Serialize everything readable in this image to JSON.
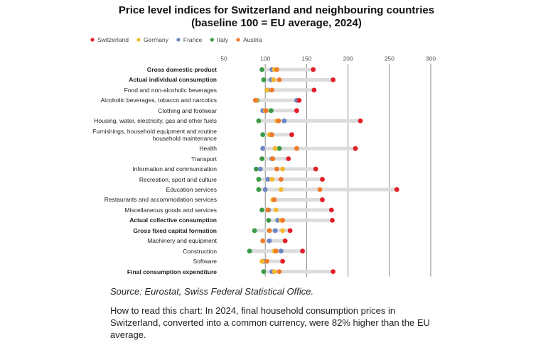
{
  "chart_data": {
    "type": "dot",
    "title": "Price level indices for Switzerland and neighbouring countries",
    "subtitle": "(baseline 100 = EU average, 2024)",
    "categories": [
      "Gross domestic product",
      "Actual individual consumption",
      "Food and non-alcoholic beverages",
      "Alcoholic beverages, tobacco and narcotics",
      "Clothing and footwear",
      "Housing, water, electricity, gas and other fuels",
      "Furnishings, household equipment and routine household maintenance",
      "Health",
      "Transport",
      "Information and communication",
      "Recreation, sport and culture",
      "Education services",
      "Restaurants and accommodation services",
      "Miscellaneous goods and services",
      "Actual collective consumption",
      "Gross fixed capital formation",
      "Machinery and equipment",
      "Construction",
      "Software",
      "Final consumption expenditure"
    ],
    "series": [
      {
        "name": "Switzerland",
        "color": "#e3202a",
        "values": [
          158,
          182,
          159,
          141,
          138,
          215,
          132,
          209,
          128,
          161,
          169,
          259,
          169,
          180,
          181,
          130,
          124,
          145,
          121,
          182
        ]
      },
      {
        "name": "Germany",
        "color": "#f5b82e",
        "values": [
          111,
          110,
          102,
          89,
          100,
          114,
          105,
          112,
          109,
          121,
          108,
          119,
          109,
          113,
          119,
          121,
          97,
          111,
          96,
          111
        ]
      },
      {
        "name": "France",
        "color": "#6e86c4",
        "values": [
          108,
          107,
          103,
          138,
          97,
          123,
          106,
          97,
          108,
          94,
          103,
          100,
          110,
          104,
          115,
          112,
          105,
          119,
          98,
          108
        ]
      },
      {
        "name": "Italy",
        "color": "#3a9a45",
        "values": [
          96,
          98,
          102,
          90,
          107,
          92,
          97,
          117,
          96,
          89,
          92,
          92,
          110,
          96,
          104,
          87,
          97,
          81,
          97,
          98
        ]
      },
      {
        "name": "Austria",
        "color": "#f07b2a",
        "values": [
          114,
          117,
          108,
          88,
          101,
          116,
          108,
          138,
          109,
          114,
          119,
          166,
          111,
          103,
          121,
          105,
          97,
          113,
          102,
          117
        ]
      }
    ],
    "xlim": [
      50,
      300
    ],
    "xticks": [
      50,
      100,
      150,
      200,
      250,
      300
    ],
    "grid": true,
    "legend": "top",
    "source": "Source: Eurostat, Swiss Federal Statistical Office.",
    "note": "How to read this chart: In 2024, final household consumption prices in Switzerland, converted into a common currency, were 82% higher than the EU average."
  }
}
